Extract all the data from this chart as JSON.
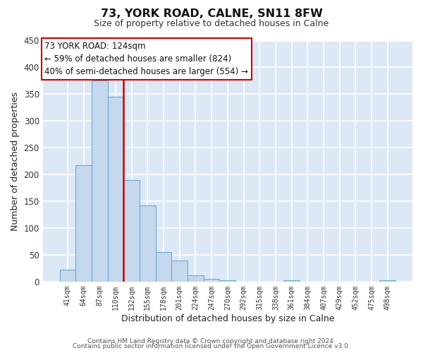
{
  "title": "73, YORK ROAD, CALNE, SN11 8FW",
  "subtitle": "Size of property relative to detached houses in Calne",
  "xlabel": "Distribution of detached houses by size in Calne",
  "ylabel": "Number of detached properties",
  "bar_labels": [
    "41sqm",
    "64sqm",
    "87sqm",
    "110sqm",
    "132sqm",
    "155sqm",
    "178sqm",
    "201sqm",
    "224sqm",
    "247sqm",
    "270sqm",
    "292sqm",
    "315sqm",
    "338sqm",
    "361sqm",
    "384sqm",
    "407sqm",
    "429sqm",
    "452sqm",
    "475sqm",
    "498sqm"
  ],
  "bar_values": [
    22,
    217,
    375,
    345,
    190,
    142,
    55,
    39,
    12,
    5,
    3,
    0,
    0,
    0,
    3,
    0,
    0,
    0,
    0,
    0,
    2
  ],
  "bar_color": "#c5d8ee",
  "bar_edge_color": "#6aaad4",
  "ylim": [
    0,
    450
  ],
  "yticks": [
    0,
    50,
    100,
    150,
    200,
    250,
    300,
    350,
    400,
    450
  ],
  "property_label": "73 YORK ROAD: 124sqm",
  "annotation_line1": "← 59% of detached houses are smaller (824)",
  "annotation_line2": "40% of semi-detached houses are larger (554) →",
  "vline_color": "#cc0000",
  "annotation_box_color": "#ffffff",
  "annotation_box_edge": "#cc0000",
  "fig_bg_color": "#ffffff",
  "plot_bg_color": "#dce8f5",
  "grid_color": "#ffffff",
  "footer_line1": "Contains HM Land Registry data © Crown copyright and database right 2024.",
  "footer_line2": "Contains public sector information licensed under the Open Government Licence v3.0."
}
